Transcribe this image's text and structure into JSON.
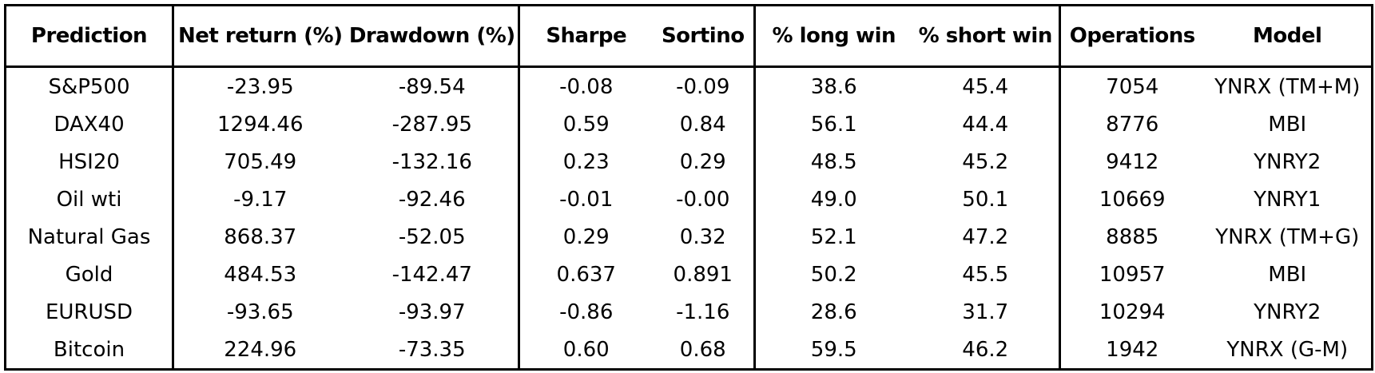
{
  "table": {
    "header": [
      "Prediction",
      "Net return (%)",
      "Drawdown (%)",
      "Sharpe",
      "Sortino",
      "% long win",
      "% short win",
      "Operations",
      "Model"
    ],
    "rows": [
      [
        "S&P500",
        "-23.95",
        "-89.54",
        "-0.08",
        "-0.09",
        "38.6",
        "45.4",
        "7054",
        "YNRX (TM+M)"
      ],
      [
        "DAX40",
        "1294.46",
        "-287.95",
        "0.59",
        "0.84",
        "56.1",
        "44.4",
        "8776",
        "MBI"
      ],
      [
        "HSI20",
        "705.49",
        "-132.16",
        "0.23",
        "0.29",
        "48.5",
        "45.2",
        "9412",
        "YNRY2"
      ],
      [
        "Oil wti",
        "-9.17",
        "-92.46",
        "-0.01",
        "-0.00",
        "49.0",
        "50.1",
        "10669",
        "YNRY1"
      ],
      [
        "Natural Gas",
        "868.37",
        "-52.05",
        "0.29",
        "0.32",
        "52.1",
        "47.2",
        "8885",
        "YNRX (TM+G)"
      ],
      [
        "Gold",
        "484.53",
        "-142.47",
        "0.637",
        "0.891",
        "50.2",
        "45.5",
        "10957",
        "MBI"
      ],
      [
        "EURUSD",
        "-93.65",
        "-93.97",
        "-0.86",
        "-1.16",
        "28.6",
        "31.7",
        "10294",
        "YNRY2"
      ],
      [
        "Bitcoin",
        "224.96",
        "-73.35",
        "0.60",
        "0.68",
        "59.5",
        "46.2",
        "1942",
        "YNRX (G-M)"
      ]
    ]
  }
}
